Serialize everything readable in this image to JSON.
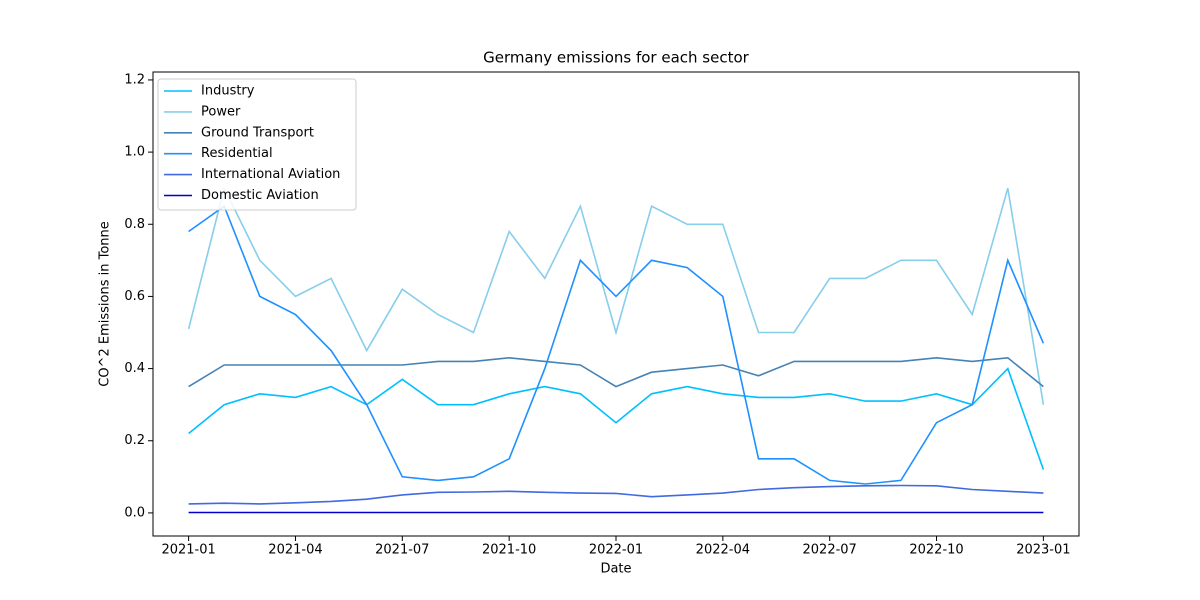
{
  "chart_data": {
    "type": "line",
    "title": "Germany emissions for each sector",
    "xlabel": "Date",
    "ylabel": "CO^2 Emissions in Tonne",
    "x": [
      "2021-01",
      "2021-02",
      "2021-03",
      "2021-04",
      "2021-05",
      "2021-06",
      "2021-07",
      "2021-08",
      "2021-09",
      "2021-10",
      "2021-11",
      "2021-12",
      "2022-01",
      "2022-02",
      "2022-03",
      "2022-04",
      "2022-05",
      "2022-06",
      "2022-07",
      "2022-08",
      "2022-09",
      "2022-10",
      "2022-11",
      "2022-12",
      "2023-01"
    ],
    "xlim": [
      "2020-12",
      "2023-02"
    ],
    "xticks": [
      "2021-01",
      "2021-04",
      "2021-07",
      "2021-10",
      "2022-01",
      "2022-04",
      "2022-07",
      "2022-10",
      "2023-01"
    ],
    "ylim": [
      -0.064,
      1.222
    ],
    "yticks": [
      {
        "value": 0,
        "label": "0.0"
      },
      {
        "value": 0.2,
        "label": "0.2"
      },
      {
        "value": 0.4,
        "label": "0.4"
      },
      {
        "value": 0.6,
        "label": "0.6"
      },
      {
        "value": 0.8,
        "label": "0.8"
      },
      {
        "value": 1,
        "label": "1.0"
      },
      {
        "value": 1.2,
        "label": "1.2"
      }
    ],
    "legend": "upper left",
    "series": [
      {
        "name": "Industry",
        "color": "#00bfff",
        "values": [
          0.22,
          0.3,
          0.33,
          0.32,
          0.35,
          0.3,
          0.37,
          0.3,
          0.3,
          0.33,
          0.35,
          0.33,
          0.25,
          0.33,
          0.35,
          0.33,
          0.32,
          0.32,
          0.33,
          0.31,
          0.31,
          0.33,
          0.3,
          0.4,
          0.12
        ]
      },
      {
        "name": "Power",
        "color": "#87ceeb",
        "values": [
          0.51,
          0.9,
          0.7,
          0.6,
          0.65,
          0.45,
          0.62,
          0.55,
          0.5,
          0.78,
          0.65,
          0.85,
          0.5,
          0.85,
          0.8,
          0.8,
          0.5,
          0.5,
          0.65,
          0.65,
          0.7,
          0.7,
          0.55,
          0.9,
          0.3
        ]
      },
      {
        "name": "Ground Transport",
        "color": "#4682b4",
        "values": [
          0.35,
          0.41,
          0.41,
          0.41,
          0.41,
          0.41,
          0.41,
          0.42,
          0.42,
          0.43,
          0.42,
          0.41,
          0.35,
          0.39,
          0.4,
          0.41,
          0.38,
          0.42,
          0.42,
          0.42,
          0.42,
          0.43,
          0.42,
          0.43,
          0.35
        ]
      },
      {
        "name": "Residential",
        "color": "#1e90ff",
        "values": [
          0.78,
          0.85,
          0.6,
          0.55,
          0.45,
          0.3,
          0.1,
          0.09,
          0.1,
          0.15,
          0.4,
          0.7,
          0.6,
          0.7,
          0.68,
          0.6,
          0.15,
          0.15,
          0.09,
          0.08,
          0.09,
          0.25,
          0.3,
          0.7,
          0.47
        ]
      },
      {
        "name": "International Aviation",
        "color": "#4169e1",
        "values": [
          0.025,
          0.027,
          0.025,
          0.028,
          0.032,
          0.038,
          0.05,
          0.057,
          0.058,
          0.06,
          0.057,
          0.055,
          0.054,
          0.045,
          0.05,
          0.055,
          0.065,
          0.07,
          0.073,
          0.075,
          0.076,
          0.075,
          0.065,
          0.06,
          0.055
        ]
      },
      {
        "name": "Domestic Aviation",
        "color": "#0000cd",
        "values": [
          0.001,
          0.001,
          0.001,
          0.001,
          0.001,
          0.001,
          0.001,
          0.001,
          0.001,
          0.001,
          0.001,
          0.001,
          0.001,
          0.001,
          0.001,
          0.001,
          0.001,
          0.001,
          0.001,
          0.001,
          0.001,
          0.001,
          0.001,
          0.001,
          0.001
        ]
      }
    ]
  }
}
